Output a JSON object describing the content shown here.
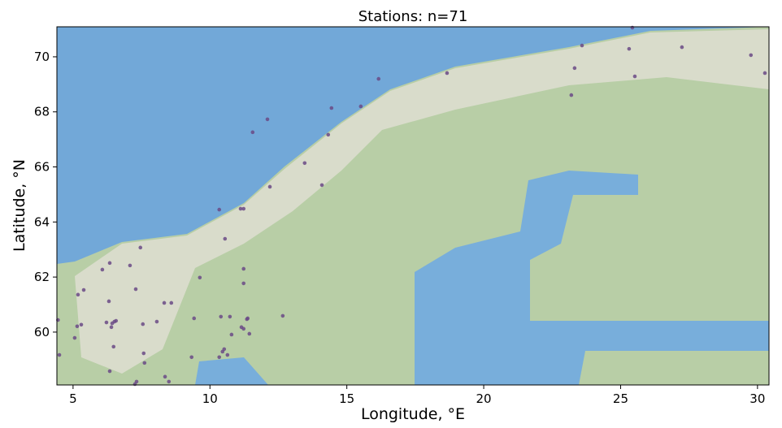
{
  "chart_data": {
    "type": "scatter",
    "title": "Stations: n=71",
    "xlabel": "Longitude, °E",
    "ylabel": "Latitude, °N",
    "x": [
      4.5,
      4.45,
      5.06,
      5.15,
      5.3,
      5.18,
      5.39,
      6.07,
      6.34,
      7.08,
      7.46,
      6.31,
      7.29,
      6.22,
      6.43,
      6.51,
      6.57,
      6.4,
      6.48,
      6.34,
      7.32,
      7.26,
      7.55,
      7.58,
      7.61,
      8.06,
      8.33,
      8.59,
      8.36,
      8.5,
      9.33,
      9.42,
      9.63,
      10.34,
      11.12,
      11.23,
      10.55,
      11.23,
      11.23,
      10.4,
      10.73,
      11.35,
      11.38,
      11.15,
      11.23,
      11.44,
      10.79,
      10.52,
      10.46,
      10.34,
      10.64,
      12.66,
      12.19,
      11.56,
      12.1,
      13.46,
      14.09,
      14.32,
      14.44,
      15.51,
      16.16,
      18.66,
      23.2,
      23.32,
      23.59,
      25.31,
      25.52,
      25.43,
      27.24,
      29.76,
      30.27
    ],
    "y": [
      59.17,
      60.44,
      59.79,
      60.21,
      60.27,
      61.36,
      61.53,
      62.27,
      62.51,
      62.42,
      63.07,
      61.12,
      61.56,
      60.35,
      60.32,
      60.38,
      60.41,
      60.18,
      59.47,
      58.58,
      58.2,
      58.11,
      60.29,
      59.23,
      58.88,
      60.38,
      61.06,
      61.06,
      58.38,
      58.2,
      59.09,
      60.5,
      61.98,
      64.45,
      64.48,
      64.48,
      63.39,
      62.3,
      61.77,
      60.56,
      60.56,
      60.47,
      60.5,
      60.18,
      60.12,
      59.94,
      59.91,
      59.38,
      59.29,
      59.09,
      59.17,
      60.59,
      65.28,
      67.26,
      67.73,
      66.14,
      65.34,
      67.17,
      68.14,
      68.2,
      69.2,
      69.41,
      68.61,
      69.59,
      70.41,
      70.29,
      69.29,
      71.06,
      70.35,
      70.06,
      69.41
    ],
    "color": "#6a4a86",
    "xlim": [
      4.41,
      30.42
    ],
    "ylim": [
      58.08,
      71.09
    ],
    "xticks": [
      5,
      10,
      15,
      20,
      25,
      30
    ],
    "yticks": [
      60,
      62,
      64,
      66,
      68,
      70
    ]
  }
}
